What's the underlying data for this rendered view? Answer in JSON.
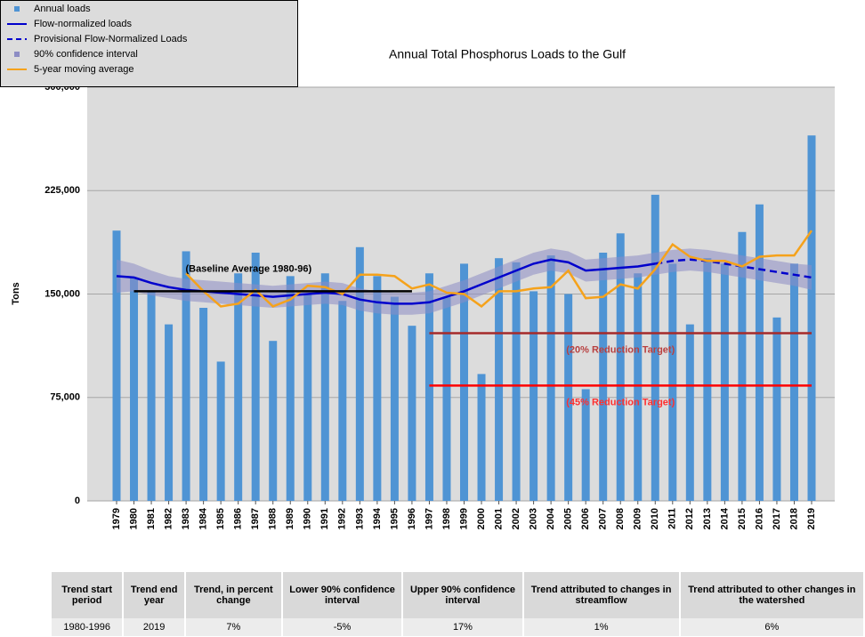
{
  "chart_data": {
    "type": "bar",
    "title": "Annual Total Phosphorus Loads to the Gulf",
    "y_label": "Tons",
    "categories": [
      "1979",
      "1980",
      "1981",
      "1982",
      "1983",
      "1984",
      "1985",
      "1986",
      "1987",
      "1988",
      "1989",
      "1990",
      "1991",
      "1992",
      "1993",
      "1994",
      "1995",
      "1996",
      "1997",
      "1998",
      "1999",
      "2000",
      "2001",
      "2002",
      "2003",
      "2004",
      "2005",
      "2006",
      "2007",
      "2008",
      "2009",
      "2010",
      "2011",
      "2012",
      "2013",
      "2014",
      "2015",
      "2016",
      "2017",
      "2018",
      "2019"
    ],
    "series": [
      {
        "name": "Annual loads",
        "type": "bar",
        "color": "#4f94d4",
        "values": [
          196000,
          162000,
          152000,
          128000,
          181000,
          140000,
          101000,
          165000,
          180000,
          116000,
          163000,
          150000,
          165000,
          145000,
          184000,
          163000,
          148000,
          127000,
          165000,
          148000,
          172000,
          92000,
          176000,
          173000,
          152000,
          178000,
          150000,
          81000,
          180000,
          194000,
          165000,
          222000,
          172000,
          128000,
          176000,
          172000,
          195000,
          215000,
          133000,
          172000,
          265000
        ]
      },
      {
        "name": "Flow-normalized loads",
        "type": "line",
        "color": "#0000cc",
        "dash": false,
        "values": [
          163000,
          162000,
          158000,
          155000,
          153000,
          152000,
          151000,
          150000,
          149000,
          148000,
          149000,
          150000,
          151000,
          150000,
          146000,
          144000,
          143000,
          143000,
          144000,
          148000,
          152000,
          157000,
          162000,
          167000,
          172000,
          175000,
          173000,
          167000,
          168000,
          169000,
          170000,
          172000,
          null,
          null,
          null,
          null,
          null,
          null,
          null,
          null,
          null
        ]
      },
      {
        "name": "Provisional Flow-Normalized Loads",
        "type": "line",
        "color": "#0000cc",
        "dash": true,
        "values": [
          null,
          null,
          null,
          null,
          null,
          null,
          null,
          null,
          null,
          null,
          null,
          null,
          null,
          null,
          null,
          null,
          null,
          null,
          null,
          null,
          null,
          null,
          null,
          null,
          null,
          null,
          null,
          null,
          null,
          null,
          null,
          172000,
          174000,
          175000,
          174000,
          172000,
          170000,
          168000,
          166000,
          164000,
          162000
        ]
      },
      {
        "name": "90% confidence interval",
        "type": "band",
        "color": "#8c8cc4",
        "upper": [
          175000,
          172000,
          167000,
          163000,
          161000,
          160000,
          159000,
          158000,
          157000,
          156000,
          157000,
          158000,
          159000,
          158000,
          154000,
          152000,
          151000,
          151000,
          152000,
          156000,
          160000,
          165000,
          170000,
          175000,
          180000,
          183000,
          181000,
          175000,
          176000,
          177000,
          178000,
          180000,
          182000,
          183000,
          182000,
          180000,
          178000,
          176000,
          174000,
          172000,
          171000
        ],
        "lower": [
          151000,
          152000,
          149000,
          147000,
          145000,
          144000,
          143000,
          142000,
          141000,
          140000,
          141000,
          142000,
          143000,
          142000,
          138000,
          136000,
          135000,
          135000,
          136000,
          140000,
          144000,
          149000,
          154000,
          159000,
          164000,
          167000,
          165000,
          159000,
          160000,
          161000,
          162000,
          164000,
          166000,
          167000,
          166000,
          164000,
          162000,
          160000,
          158000,
          156000,
          153000
        ]
      },
      {
        "name": "5-year moving average",
        "type": "line",
        "color": "#f5a21b",
        "dash": false,
        "values": [
          null,
          null,
          null,
          null,
          165000,
          152000,
          141000,
          143000,
          153000,
          141000,
          146000,
          156000,
          155000,
          150000,
          164000,
          164000,
          163000,
          154000,
          157000,
          151000,
          150000,
          141000,
          152000,
          152000,
          154000,
          155000,
          167000,
          147000,
          148000,
          157000,
          154000,
          168000,
          186000,
          177000,
          174000,
          174000,
          170000,
          177000,
          178000,
          178000,
          196000
        ]
      }
    ],
    "reference_lines": [
      {
        "label": "(Baseline Average 1980-96)",
        "value": 152000,
        "start": "1980",
        "end": "1996",
        "color": "#000000",
        "label_color": "#000000"
      },
      {
        "label": "(20% Reduction Target)",
        "value": 121600,
        "start": "1997",
        "end": "2019",
        "color": "#a52a2a",
        "label_color": "#b84040"
      },
      {
        "label": "(45% Reduction Target)",
        "value": 83600,
        "start": "1997",
        "end": "2019",
        "color": "#ff0000",
        "label_color": "#ff3030"
      }
    ],
    "ylim": [
      0,
      300000
    ],
    "yticks": [
      0,
      {
        "value": 75000,
        "label": "75,000"
      },
      {
        "value": 150000,
        "label": "150,000"
      },
      {
        "value": 225000,
        "label": "225,000"
      },
      {
        "value": 300000,
        "label": "300,000"
      }
    ],
    "grid": true,
    "legend": "top-left"
  },
  "table": {
    "headers": [
      "Trend start period",
      "Trend end year",
      "Trend, in percent change",
      "Lower 90% confidence interval",
      "Upper 90% confidence interval",
      "Trend attributed to changes in streamflow",
      "Trend attributed to other changes in the watershed"
    ],
    "rows": [
      [
        "1980-1996",
        "2019",
        "7%",
        "-5%",
        "17%",
        "1%",
        "6%"
      ]
    ]
  }
}
